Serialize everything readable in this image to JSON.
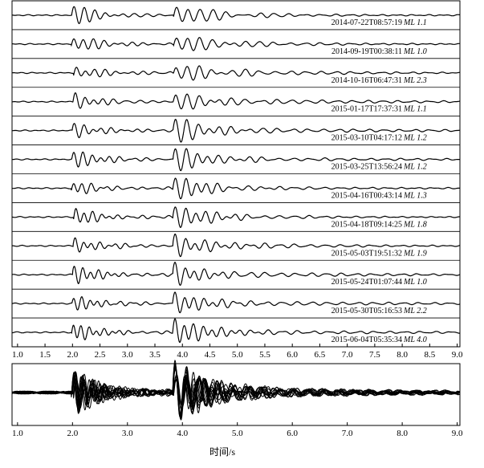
{
  "chart_data": [
    {
      "type": "waveform-stack",
      "traces": [
        {
          "time": "2014-07-22T08:57:19",
          "magnitude": "ML 1.1"
        },
        {
          "time": "2014-09-19T00:38:11",
          "magnitude": "ML 1.0"
        },
        {
          "time": "2014-10-16T06:47:31",
          "magnitude": "ML 2.3"
        },
        {
          "time": "2015-01-17T17:37:31",
          "magnitude": "ML 1.1"
        },
        {
          "time": "2015-03-10T04:17:12",
          "magnitude": "ML 1.2"
        },
        {
          "time": "2015-03-25T13:56:24",
          "magnitude": "ML 1.2"
        },
        {
          "time": "2015-04-16T00:43:14",
          "magnitude": "ML 1.3"
        },
        {
          "time": "2015-04-18T09:14:25",
          "magnitude": "ML 1.8"
        },
        {
          "time": "2015-05-03T19:51:32",
          "magnitude": "ML 1.9"
        },
        {
          "time": "2015-05-24T01:07:44",
          "magnitude": "ML 1.0"
        },
        {
          "time": "2015-05-30T05:16:53",
          "magnitude": "ML 2.2"
        },
        {
          "time": "2015-06-04T05:35:34",
          "magnitude": "ML 4.0"
        }
      ],
      "xlim": [
        0.9,
        9.05
      ],
      "xticks": [
        {
          "value": 1,
          "label": "1.0"
        },
        1.5,
        {
          "value": 2,
          "label": "2.0"
        },
        2.5,
        {
          "value": 3,
          "label": "3.0"
        },
        3.5,
        {
          "value": 4,
          "label": "4.0"
        },
        4.5,
        {
          "value": 5,
          "label": "5.0"
        },
        5.5,
        {
          "value": 6,
          "label": "6.0"
        },
        6.5,
        {
          "value": 7,
          "label": "7.0"
        },
        7.5,
        {
          "value": 8,
          "label": "8.0"
        },
        8.5,
        {
          "value": 9,
          "label": "9.0"
        }
      ],
      "color": "#000000"
    },
    {
      "type": "waveform-overlay",
      "xlim": [
        0.9,
        9.05
      ],
      "xticks": [
        {
          "value": 1,
          "label": "1.0"
        },
        {
          "value": 2,
          "label": "2.0"
        },
        {
          "value": 3,
          "label": "3.0"
        },
        {
          "value": 4,
          "label": "4.0"
        },
        {
          "value": 5,
          "label": "5.0"
        },
        {
          "value": 6,
          "label": "6.0"
        },
        {
          "value": 7,
          "label": "7.0"
        },
        {
          "value": 8,
          "label": "8.0"
        },
        {
          "value": 9,
          "label": "9.0"
        }
      ],
      "x_label": "时间/s",
      "color": "#000000"
    }
  ]
}
